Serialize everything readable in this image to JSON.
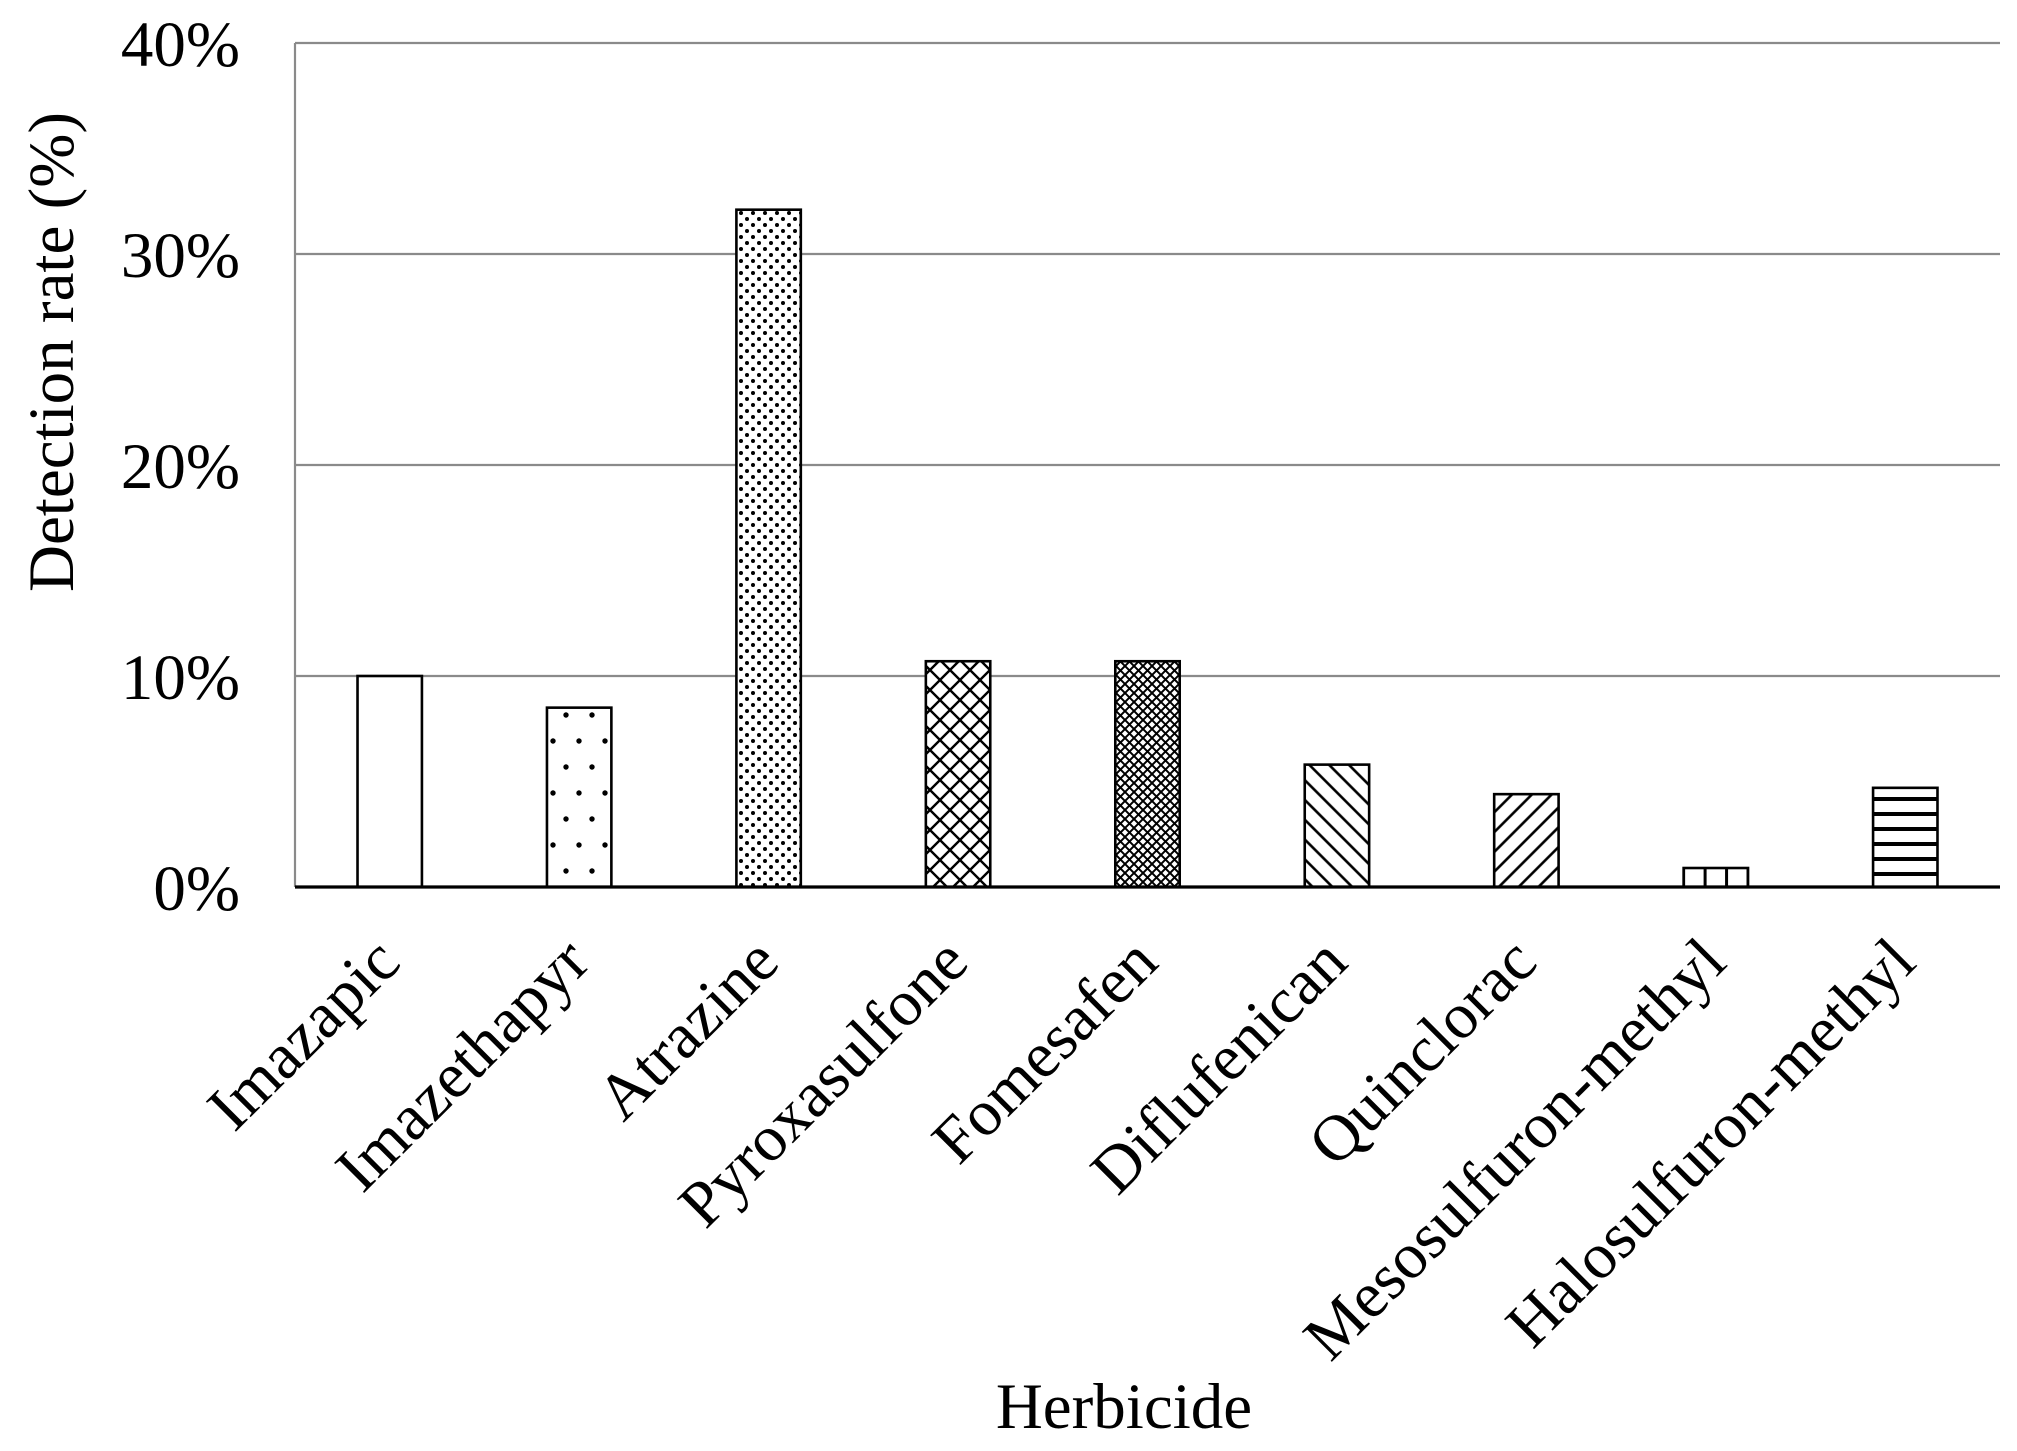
{
  "chart_data": {
    "type": "bar",
    "categories": [
      "Imazapic",
      "Imazethapyr",
      "Atrazine",
      "Pyroxasulfone",
      "Fomesafen",
      "Diflufenican",
      "Quinclorac",
      "Mesosulfuron-methyl",
      "Halosulfuron-methyl"
    ],
    "values": [
      10.0,
      8.5,
      32.1,
      10.7,
      10.7,
      5.8,
      4.4,
      0.9,
      4.7
    ],
    "xlabel": "Herbicide",
    "ylabel": "Detection rate (%)",
    "ylim": [
      0,
      40
    ],
    "yticks": [
      0,
      10,
      20,
      30,
      40
    ],
    "ytick_labels": [
      "0%",
      "10%",
      "20%",
      "30%",
      "40%"
    ],
    "grid": true,
    "legend": false
  }
}
